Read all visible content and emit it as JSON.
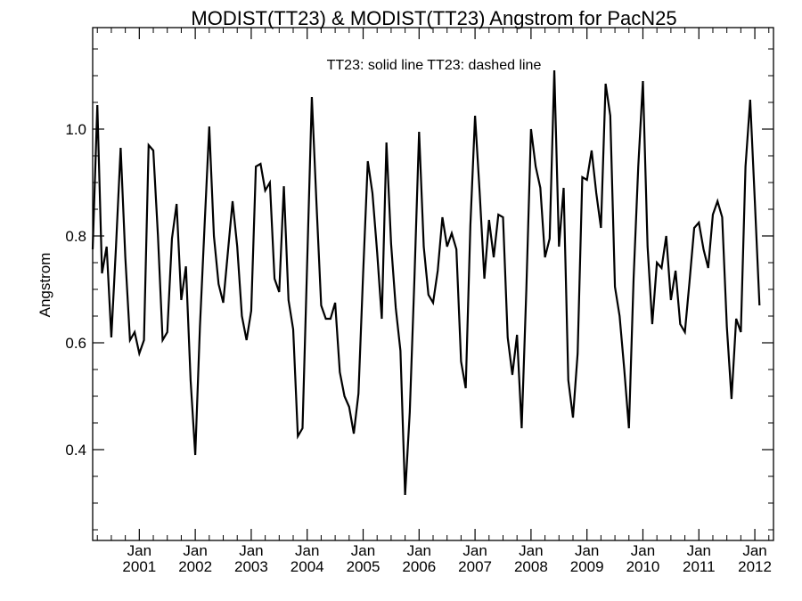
{
  "chart_data": {
    "type": "line",
    "title": "MODIST(TT23) & MODIST(TT23)  Angstrom for PacN25",
    "ylabel": "Angstrom",
    "xlabel": "",
    "legend_text": "TT23: solid line   TT23: dashed line",
    "ylim": [
      0.23,
      1.19
    ],
    "y_ticks": [
      0.4,
      0.6,
      0.8,
      1.0
    ],
    "y_tick_labels": [
      "0.4",
      "0.6",
      "0.8",
      "1.0"
    ],
    "x_start": "2000-03",
    "x_end": "2012-05",
    "x_ticks": [
      {
        "month": "Jan",
        "year": "2001"
      },
      {
        "month": "Jan",
        "year": "2002"
      },
      {
        "month": "Jan",
        "year": "2003"
      },
      {
        "month": "Jan",
        "year": "2004"
      },
      {
        "month": "Jan",
        "year": "2005"
      },
      {
        "month": "Jan",
        "year": "2006"
      },
      {
        "month": "Jan",
        "year": "2007"
      },
      {
        "month": "Jan",
        "year": "2008"
      },
      {
        "month": "Jan",
        "year": "2009"
      },
      {
        "month": "Jan",
        "year": "2010"
      },
      {
        "month": "Jan",
        "year": "2011"
      },
      {
        "month": "Jan",
        "year": "2012"
      }
    ],
    "grid": false,
    "series": [
      {
        "name": "TT23",
        "style": "solid",
        "color": "#000000",
        "points": [
          [
            "2000-03",
            0.775
          ],
          [
            "2000-04",
            1.045
          ],
          [
            "2000-05",
            0.73
          ],
          [
            "2000-06",
            0.78
          ],
          [
            "2000-07",
            0.61
          ],
          [
            "2000-08",
            0.78
          ],
          [
            "2000-09",
            0.965
          ],
          [
            "2000-10",
            0.76
          ],
          [
            "2000-11",
            0.605
          ],
          [
            "2000-12",
            0.62
          ],
          [
            "2001-01",
            0.58
          ],
          [
            "2001-02",
            0.605
          ],
          [
            "2001-03",
            0.97
          ],
          [
            "2001-04",
            0.96
          ],
          [
            "2001-05",
            0.8
          ],
          [
            "2001-06",
            0.605
          ],
          [
            "2001-07",
            0.62
          ],
          [
            "2001-08",
            0.795
          ],
          [
            "2001-09",
            0.86
          ],
          [
            "2001-10",
            0.68
          ],
          [
            "2001-11",
            0.743
          ],
          [
            "2001-12",
            0.53
          ],
          [
            "2002-01",
            0.39
          ],
          [
            "2002-02",
            0.63
          ],
          [
            "2002-03",
            0.82
          ],
          [
            "2002-04",
            1.005
          ],
          [
            "2002-05",
            0.8
          ],
          [
            "2002-06",
            0.71
          ],
          [
            "2002-07",
            0.675
          ],
          [
            "2002-08",
            0.77
          ],
          [
            "2002-09",
            0.865
          ],
          [
            "2002-10",
            0.78
          ],
          [
            "2002-11",
            0.65
          ],
          [
            "2002-12",
            0.605
          ],
          [
            "2003-01",
            0.66
          ],
          [
            "2003-02",
            0.93
          ],
          [
            "2003-03",
            0.935
          ],
          [
            "2003-04",
            0.885
          ],
          [
            "2003-05",
            0.9
          ],
          [
            "2003-06",
            0.72
          ],
          [
            "2003-07",
            0.695
          ],
          [
            "2003-08",
            0.893
          ],
          [
            "2003-09",
            0.68
          ],
          [
            "2003-10",
            0.625
          ],
          [
            "2003-11",
            0.425
          ],
          [
            "2003-12",
            0.44
          ],
          [
            "2004-01",
            0.75
          ],
          [
            "2004-02",
            1.06
          ],
          [
            "2004-03",
            0.86
          ],
          [
            "2004-04",
            0.67
          ],
          [
            "2004-05",
            0.645
          ],
          [
            "2004-06",
            0.645
          ],
          [
            "2004-07",
            0.675
          ],
          [
            "2004-08",
            0.545
          ],
          [
            "2004-09",
            0.5
          ],
          [
            "2004-10",
            0.48
          ],
          [
            "2004-11",
            0.43
          ],
          [
            "2004-12",
            0.505
          ],
          [
            "2005-01",
            0.73
          ],
          [
            "2005-02",
            0.94
          ],
          [
            "2005-03",
            0.88
          ],
          [
            "2005-04",
            0.77
          ],
          [
            "2005-05",
            0.645
          ],
          [
            "2005-06",
            0.975
          ],
          [
            "2005-07",
            0.785
          ],
          [
            "2005-08",
            0.665
          ],
          [
            "2005-09",
            0.585
          ],
          [
            "2005-10",
            0.315
          ],
          [
            "2005-11",
            0.47
          ],
          [
            "2005-12",
            0.72
          ],
          [
            "2006-01",
            0.995
          ],
          [
            "2006-02",
            0.78
          ],
          [
            "2006-03",
            0.69
          ],
          [
            "2006-04",
            0.675
          ],
          [
            "2006-05",
            0.735
          ],
          [
            "2006-06",
            0.835
          ],
          [
            "2006-07",
            0.78
          ],
          [
            "2006-08",
            0.805
          ],
          [
            "2006-09",
            0.775
          ],
          [
            "2006-10",
            0.565
          ],
          [
            "2006-11",
            0.515
          ],
          [
            "2006-12",
            0.82
          ],
          [
            "2007-01",
            1.025
          ],
          [
            "2007-02",
            0.88
          ],
          [
            "2007-03",
            0.72
          ],
          [
            "2007-04",
            0.83
          ],
          [
            "2007-05",
            0.76
          ],
          [
            "2007-06",
            0.84
          ],
          [
            "2007-07",
            0.835
          ],
          [
            "2007-08",
            0.61
          ],
          [
            "2007-09",
            0.54
          ],
          [
            "2007-10",
            0.615
          ],
          [
            "2007-11",
            0.44
          ],
          [
            "2007-12",
            0.7
          ],
          [
            "2008-01",
            1.0
          ],
          [
            "2008-02",
            0.93
          ],
          [
            "2008-03",
            0.89
          ],
          [
            "2008-04",
            0.76
          ],
          [
            "2008-05",
            0.795
          ],
          [
            "2008-06",
            1.11
          ],
          [
            "2008-07",
            0.78
          ],
          [
            "2008-08",
            0.89
          ],
          [
            "2008-09",
            0.53
          ],
          [
            "2008-10",
            0.46
          ],
          [
            "2008-11",
            0.58
          ],
          [
            "2008-12",
            0.91
          ],
          [
            "2009-01",
            0.905
          ],
          [
            "2009-02",
            0.96
          ],
          [
            "2009-03",
            0.88
          ],
          [
            "2009-04",
            0.815
          ],
          [
            "2009-05",
            1.085
          ],
          [
            "2009-06",
            1.025
          ],
          [
            "2009-07",
            0.705
          ],
          [
            "2009-08",
            0.65
          ],
          [
            "2009-09",
            0.55
          ],
          [
            "2009-10",
            0.44
          ],
          [
            "2009-11",
            0.72
          ],
          [
            "2009-12",
            0.93
          ],
          [
            "2010-01",
            1.09
          ],
          [
            "2010-02",
            0.78
          ],
          [
            "2010-03",
            0.635
          ],
          [
            "2010-04",
            0.75
          ],
          [
            "2010-05",
            0.74
          ],
          [
            "2010-06",
            0.8
          ],
          [
            "2010-07",
            0.68
          ],
          [
            "2010-08",
            0.735
          ],
          [
            "2010-09",
            0.635
          ],
          [
            "2010-10",
            0.62
          ],
          [
            "2010-11",
            0.715
          ],
          [
            "2010-12",
            0.815
          ],
          [
            "2011-01",
            0.825
          ],
          [
            "2011-02",
            0.775
          ],
          [
            "2011-03",
            0.74
          ],
          [
            "2011-04",
            0.84
          ],
          [
            "2011-05",
            0.865
          ],
          [
            "2011-06",
            0.835
          ],
          [
            "2011-07",
            0.63
          ],
          [
            "2011-08",
            0.495
          ],
          [
            "2011-09",
            0.645
          ],
          [
            "2011-10",
            0.62
          ],
          [
            "2011-11",
            0.93
          ],
          [
            "2011-12",
            1.055
          ],
          [
            "2012-01",
            0.865
          ],
          [
            "2012-02",
            0.67
          ]
        ]
      }
    ]
  }
}
